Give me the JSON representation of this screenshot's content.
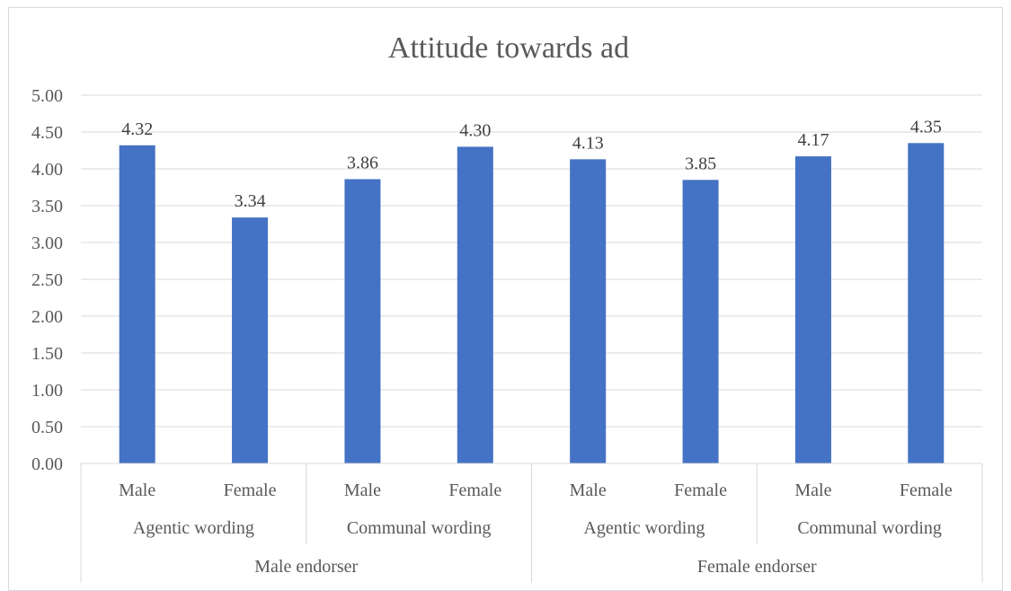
{
  "chart_data": {
    "type": "bar",
    "title": "Attitude towards ad",
    "xlabel": "",
    "ylabel": "",
    "ylim": [
      0,
      5
    ],
    "yticks": [
      "0.00",
      "0.50",
      "1.00",
      "1.50",
      "2.00",
      "2.50",
      "3.00",
      "3.50",
      "4.00",
      "4.50",
      "5.00"
    ],
    "grid": true,
    "legend": "none",
    "categories": [
      "Male",
      "Female",
      "Male",
      "Female",
      "Male",
      "Female",
      "Male",
      "Female"
    ],
    "values": [
      4.32,
      3.34,
      3.86,
      4.3,
      4.13,
      3.85,
      4.17,
      4.35
    ],
    "value_labels": [
      "4.32",
      "3.34",
      "3.86",
      "4.30",
      "4.13",
      "3.85",
      "4.17",
      "4.35"
    ],
    "level2": [
      "Agentic wording",
      "Communal wording",
      "Agentic wording",
      "Communal wording"
    ],
    "level3": [
      "Male endorser",
      "Female endorser"
    ],
    "bar_color": "#4472c4"
  }
}
